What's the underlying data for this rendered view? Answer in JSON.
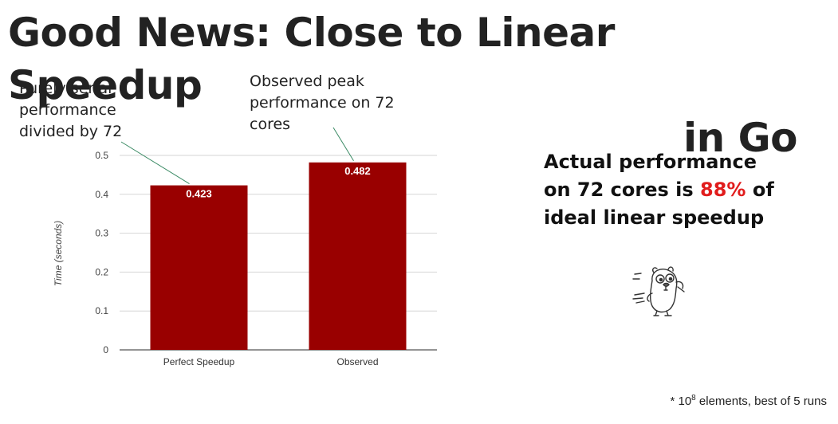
{
  "title": {
    "line1": "Good News: Close to Linear Speedup",
    "line2": "in Go"
  },
  "callouts": {
    "left": [
      "Purely serial",
      "performance",
      "divided by 72"
    ],
    "right": [
      "Observed peak",
      "performance on 72",
      "cores"
    ]
  },
  "summary": {
    "line1": "Actual performance",
    "line2_pre": "on 72 cores is ",
    "highlight": "88%",
    "line2_post": " of",
    "line3": "ideal linear speedup",
    "highlight_color": "#e11d1d"
  },
  "footnote": {
    "prefix": "* 10",
    "exponent": "8",
    "suffix": " elements, best of 5 runs"
  },
  "icons": {
    "mascot": "go-gopher-icon"
  },
  "chart_data": {
    "type": "bar",
    "categories": [
      "Perfect Speedup",
      "Observed"
    ],
    "values": [
      0.423,
      0.482
    ],
    "data_labels": [
      "0.423",
      "0.482"
    ],
    "ylabel": "Time (seconds)",
    "xlabel": "",
    "ylim": [
      0,
      0.5
    ],
    "yticks": [
      "0",
      "0.1",
      "0.2",
      "0.3",
      "0.4",
      "0.5"
    ],
    "grid": true,
    "bar_color": "#990000"
  }
}
